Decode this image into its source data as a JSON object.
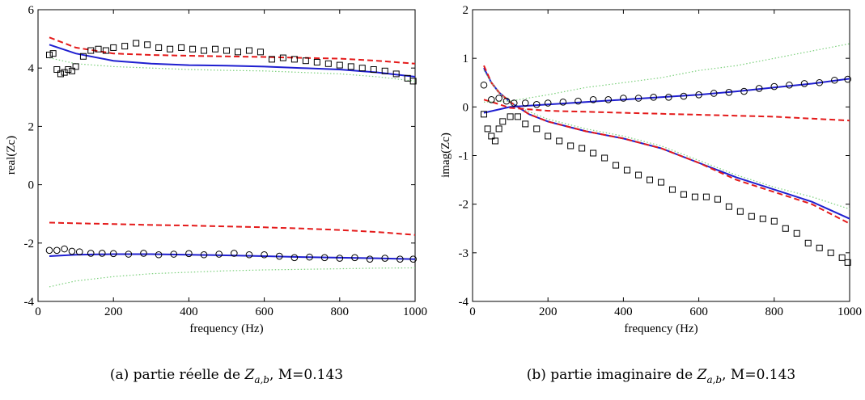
{
  "colors": {
    "axis": "#000000",
    "markers": "#000000",
    "solid": "#1f1fd0",
    "dashed": "#e41a1a",
    "dotted": "#7bd07b"
  },
  "chart_data": [
    {
      "type": "line",
      "xlabel": "frequency (Hz)",
      "ylabel": "real(Zc)",
      "xlim": [
        0,
        1000
      ],
      "ylim": [
        -4,
        6
      ],
      "xticks": [
        "0",
        "200",
        "400",
        "600",
        "800",
        "1000"
      ],
      "yticks": [
        "-4",
        "-2",
        "0",
        "2",
        "4",
        "6"
      ],
      "grid": false,
      "caption_prefix": "(a)  partie réelle de ",
      "caption_var": "Z",
      "caption_sub": "a,b",
      "caption_suffix": ", M=0.143",
      "series": [
        {
          "style": "solid",
          "x": [
            30,
            100,
            200,
            300,
            400,
            500,
            600,
            700,
            800,
            900,
            1000
          ],
          "y": [
            4.8,
            4.5,
            4.25,
            4.15,
            4.1,
            4.08,
            4.05,
            4.0,
            3.95,
            3.85,
            3.7
          ]
        },
        {
          "style": "dashed",
          "x": [
            30,
            100,
            200,
            300,
            400,
            500,
            600,
            700,
            800,
            900,
            1000
          ],
          "y": [
            5.05,
            4.7,
            4.5,
            4.45,
            4.42,
            4.4,
            4.38,
            4.35,
            4.32,
            4.25,
            4.15
          ]
        },
        {
          "style": "dotted",
          "x": [
            30,
            100,
            200,
            300,
            400,
            500,
            600,
            700,
            800,
            900,
            1000
          ],
          "y": [
            4.35,
            4.15,
            4.05,
            4.0,
            3.95,
            3.92,
            3.9,
            3.85,
            3.8,
            3.7,
            3.55
          ]
        },
        {
          "style": "solid",
          "x": [
            30,
            100,
            200,
            300,
            400,
            500,
            600,
            700,
            800,
            900,
            1000
          ],
          "y": [
            -2.45,
            -2.4,
            -2.38,
            -2.38,
            -2.4,
            -2.42,
            -2.45,
            -2.48,
            -2.5,
            -2.52,
            -2.55
          ]
        },
        {
          "style": "dashed",
          "x": [
            30,
            100,
            200,
            300,
            400,
            500,
            600,
            700,
            800,
            900,
            1000
          ],
          "y": [
            -1.3,
            -1.32,
            -1.35,
            -1.38,
            -1.4,
            -1.43,
            -1.46,
            -1.5,
            -1.55,
            -1.62,
            -1.72
          ]
        },
        {
          "style": "dotted",
          "x": [
            30,
            100,
            200,
            300,
            400,
            500,
            600,
            700,
            800,
            900,
            1000
          ],
          "y": [
            -3.5,
            -3.3,
            -3.15,
            -3.05,
            -3.0,
            -2.95,
            -2.92,
            -2.9,
            -2.88,
            -2.86,
            -2.85
          ]
        },
        {
          "style": "square",
          "x": [
            30,
            40,
            50,
            60,
            70,
            80,
            90,
            100,
            120,
            140,
            160,
            180,
            200,
            230,
            260,
            290,
            320,
            350,
            380,
            410,
            440,
            470,
            500,
            530,
            560,
            590,
            620,
            650,
            680,
            710,
            740,
            770,
            800,
            830,
            860,
            890,
            920,
            950,
            980,
            995
          ],
          "y": [
            4.45,
            4.5,
            3.95,
            3.8,
            3.85,
            3.95,
            3.9,
            4.05,
            4.4,
            4.6,
            4.65,
            4.6,
            4.7,
            4.75,
            4.85,
            4.8,
            4.7,
            4.65,
            4.7,
            4.65,
            4.6,
            4.65,
            4.6,
            4.55,
            4.6,
            4.55,
            4.3,
            4.35,
            4.3,
            4.25,
            4.2,
            4.15,
            4.1,
            4.05,
            4.0,
            3.95,
            3.9,
            3.8,
            3.65,
            3.55
          ]
        },
        {
          "style": "circle",
          "x": [
            30,
            50,
            70,
            90,
            110,
            140,
            170,
            200,
            240,
            280,
            320,
            360,
            400,
            440,
            480,
            520,
            560,
            600,
            640,
            680,
            720,
            760,
            800,
            840,
            880,
            920,
            960,
            995
          ],
          "y": [
            -2.25,
            -2.25,
            -2.2,
            -2.28,
            -2.3,
            -2.35,
            -2.35,
            -2.36,
            -2.38,
            -2.35,
            -2.4,
            -2.38,
            -2.36,
            -2.4,
            -2.38,
            -2.35,
            -2.4,
            -2.4,
            -2.45,
            -2.5,
            -2.48,
            -2.5,
            -2.52,
            -2.5,
            -2.55,
            -2.52,
            -2.55,
            -2.55
          ]
        }
      ]
    },
    {
      "type": "line",
      "xlabel": "frequency (Hz)",
      "ylabel": "imag(Zc)",
      "xlim": [
        0,
        1000
      ],
      "ylim": [
        -4,
        2
      ],
      "xticks": [
        "0",
        "200",
        "400",
        "600",
        "800",
        "1000"
      ],
      "yticks": [
        "-4",
        "-3",
        "-2",
        "-1",
        "0",
        "1",
        "2"
      ],
      "grid": false,
      "caption_prefix": "(b)  partie imaginaire de ",
      "caption_var": "Z",
      "caption_sub": "a,b",
      "caption_suffix": ", M=0.143",
      "series": [
        {
          "style": "solid",
          "x": [
            30,
            50,
            70,
            100,
            150,
            200,
            300,
            400,
            500,
            600,
            700,
            800,
            900,
            1000
          ],
          "y": [
            0.8,
            0.5,
            0.3,
            0.1,
            -0.15,
            -0.3,
            -0.5,
            -0.65,
            -0.85,
            -1.15,
            -1.45,
            -1.7,
            -1.95,
            -2.3
          ]
        },
        {
          "style": "dashed",
          "x": [
            30,
            50,
            70,
            100,
            150,
            200,
            300,
            400,
            500,
            600,
            700,
            800,
            900,
            1000
          ],
          "y": [
            0.85,
            0.5,
            0.3,
            0.1,
            -0.15,
            -0.3,
            -0.5,
            -0.65,
            -0.85,
            -1.15,
            -1.5,
            -1.75,
            -2.0,
            -2.4
          ]
        },
        {
          "style": "dotted",
          "x": [
            30,
            50,
            70,
            100,
            150,
            200,
            300,
            400,
            500,
            600,
            700,
            800,
            900,
            1000
          ],
          "y": [
            0.75,
            0.5,
            0.3,
            0.1,
            -0.1,
            -0.25,
            -0.45,
            -0.6,
            -0.8,
            -1.1,
            -1.4,
            -1.65,
            -1.85,
            -2.1
          ]
        },
        {
          "style": "solid",
          "x": [
            30,
            100,
            200,
            300,
            400,
            500,
            600,
            700,
            800,
            900,
            1000
          ],
          "y": [
            -0.12,
            0.0,
            0.05,
            0.1,
            0.15,
            0.2,
            0.25,
            0.32,
            0.4,
            0.48,
            0.58
          ]
        },
        {
          "style": "dashed",
          "x": [
            30,
            60,
            100,
            200,
            300,
            400,
            500,
            600,
            700,
            800,
            900,
            1000
          ],
          "y": [
            0.15,
            0.08,
            -0.02,
            -0.08,
            -0.1,
            -0.12,
            -0.14,
            -0.16,
            -0.18,
            -0.2,
            -0.24,
            -0.28
          ]
        },
        {
          "style": "dotted",
          "x": [
            30,
            100,
            200,
            300,
            400,
            500,
            600,
            700,
            800,
            900,
            1000
          ],
          "y": [
            0.1,
            0.12,
            0.25,
            0.4,
            0.5,
            0.6,
            0.75,
            0.85,
            1.0,
            1.15,
            1.3
          ]
        },
        {
          "style": "circle",
          "x": [
            30,
            50,
            70,
            90,
            110,
            140,
            170,
            200,
            240,
            280,
            320,
            360,
            400,
            440,
            480,
            520,
            560,
            600,
            640,
            680,
            720,
            760,
            800,
            840,
            880,
            920,
            960,
            995
          ],
          "y": [
            0.45,
            0.15,
            0.18,
            0.12,
            0.08,
            0.08,
            0.05,
            0.08,
            0.1,
            0.12,
            0.15,
            0.15,
            0.18,
            0.18,
            0.2,
            0.2,
            0.22,
            0.25,
            0.28,
            0.3,
            0.32,
            0.38,
            0.42,
            0.45,
            0.48,
            0.5,
            0.55,
            0.57
          ]
        },
        {
          "style": "square",
          "x": [
            30,
            40,
            50,
            60,
            70,
            80,
            100,
            120,
            140,
            170,
            200,
            230,
            260,
            290,
            320,
            350,
            380,
            410,
            440,
            470,
            500,
            530,
            560,
            590,
            620,
            650,
            680,
            710,
            740,
            770,
            800,
            830,
            860,
            890,
            920,
            950,
            980,
            995
          ],
          "y": [
            -0.15,
            -0.45,
            -0.6,
            -0.7,
            -0.45,
            -0.3,
            -0.2,
            -0.2,
            -0.35,
            -0.45,
            -0.6,
            -0.7,
            -0.8,
            -0.85,
            -0.95,
            -1.05,
            -1.2,
            -1.3,
            -1.4,
            -1.5,
            -1.55,
            -1.7,
            -1.8,
            -1.85,
            -1.85,
            -1.9,
            -2.05,
            -2.15,
            -2.25,
            -2.3,
            -2.35,
            -2.5,
            -2.6,
            -2.8,
            -2.9,
            -3.0,
            -3.1,
            -3.2
          ]
        }
      ]
    }
  ]
}
